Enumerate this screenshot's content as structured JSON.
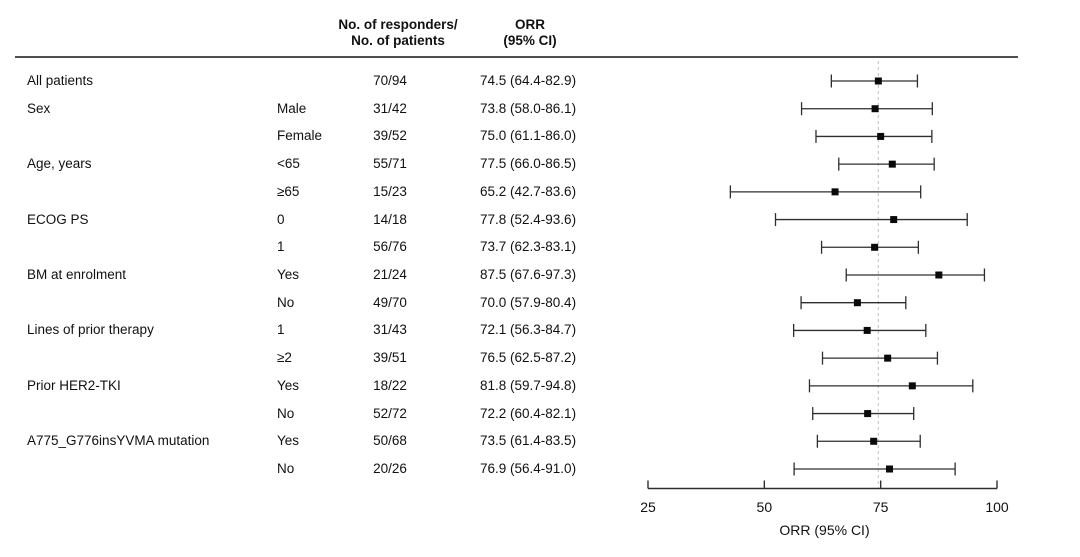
{
  "header": {
    "col_responders_line1": "No. of responders/",
    "col_responders_line2": "No. of patients",
    "col_orr_line1": "ORR",
    "col_orr_line2": "(95% CI)"
  },
  "chart_data": {
    "type": "scatter",
    "subtype": "forest-plot",
    "xlabel": "ORR (95% CI)",
    "x_ticks": [
      25,
      50,
      75,
      100
    ],
    "xlim": [
      25,
      100
    ],
    "reference_line": 74.5,
    "grid": false,
    "rows": [
      {
        "group": "All patients",
        "subgroup": "",
        "n": "70/94",
        "orr": 74.5,
        "ci_low": 64.4,
        "ci_high": 82.9,
        "label": "74.5 (64.4-82.9)"
      },
      {
        "group": "Sex",
        "subgroup": "Male",
        "n": "31/42",
        "orr": 73.8,
        "ci_low": 58.0,
        "ci_high": 86.1,
        "label": "73.8 (58.0-86.1)"
      },
      {
        "group": "",
        "subgroup": "Female",
        "n": "39/52",
        "orr": 75.0,
        "ci_low": 61.1,
        "ci_high": 86.0,
        "label": "75.0 (61.1-86.0)"
      },
      {
        "group": "Age, years",
        "subgroup": "<65",
        "n": "55/71",
        "orr": 77.5,
        "ci_low": 66.0,
        "ci_high": 86.5,
        "label": "77.5 (66.0-86.5)"
      },
      {
        "group": "",
        "subgroup": "≥65",
        "n": "15/23",
        "orr": 65.2,
        "ci_low": 42.7,
        "ci_high": 83.6,
        "label": "65.2 (42.7-83.6)"
      },
      {
        "group": "ECOG PS",
        "subgroup": "0",
        "n": "14/18",
        "orr": 77.8,
        "ci_low": 52.4,
        "ci_high": 93.6,
        "label": "77.8 (52.4-93.6)"
      },
      {
        "group": "",
        "subgroup": "1",
        "n": "56/76",
        "orr": 73.7,
        "ci_low": 62.3,
        "ci_high": 83.1,
        "label": "73.7 (62.3-83.1)"
      },
      {
        "group": "BM at enrolment",
        "subgroup": "Yes",
        "n": "21/24",
        "orr": 87.5,
        "ci_low": 67.6,
        "ci_high": 97.3,
        "label": "87.5 (67.6-97.3)"
      },
      {
        "group": "",
        "subgroup": "No",
        "n": "49/70",
        "orr": 70.0,
        "ci_low": 57.9,
        "ci_high": 80.4,
        "label": "70.0 (57.9-80.4)"
      },
      {
        "group": "Lines of prior therapy",
        "subgroup": "1",
        "n": "31/43",
        "orr": 72.1,
        "ci_low": 56.3,
        "ci_high": 84.7,
        "label": "72.1 (56.3-84.7)"
      },
      {
        "group": "",
        "subgroup": "≥2",
        "n": "39/51",
        "orr": 76.5,
        "ci_low": 62.5,
        "ci_high": 87.2,
        "label": "76.5 (62.5-87.2)"
      },
      {
        "group": "Prior HER2-TKI",
        "subgroup": "Yes",
        "n": "18/22",
        "orr": 81.8,
        "ci_low": 59.7,
        "ci_high": 94.8,
        "label": "81.8 (59.7-94.8)"
      },
      {
        "group": "",
        "subgroup": "No",
        "n": "52/72",
        "orr": 72.2,
        "ci_low": 60.4,
        "ci_high": 82.1,
        "label": "72.2 (60.4-82.1)"
      },
      {
        "group": "A775_G776insYVMA mutation",
        "subgroup": "Yes",
        "n": "50/68",
        "orr": 73.5,
        "ci_low": 61.4,
        "ci_high": 83.5,
        "label": "73.5 (61.4-83.5)"
      },
      {
        "group": "",
        "subgroup": "No",
        "n": "20/26",
        "orr": 76.9,
        "ci_low": 56.4,
        "ci_high": 91.0,
        "label": "76.9 (56.4-91.0)"
      }
    ]
  },
  "colors": {
    "text": "#111111",
    "plot_line": "#2e2e2e",
    "marker": "#0a0a0a",
    "header_rule": "#4f4f4f",
    "reference_line": "#c8c8c8",
    "background": "#ffffff"
  }
}
